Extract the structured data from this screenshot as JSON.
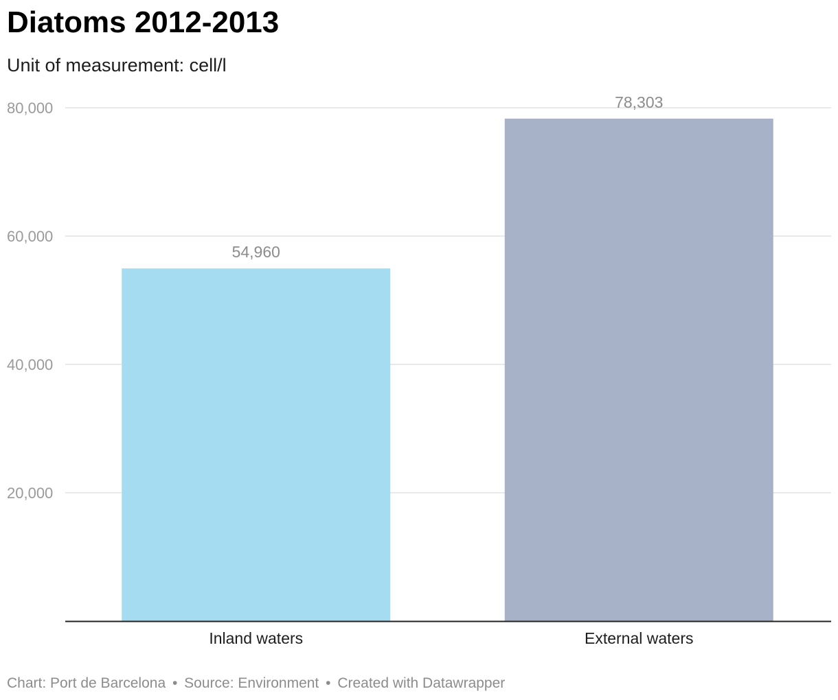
{
  "title": "Diatoms 2012-2013",
  "subtitle": "Unit of measurement: cell/l",
  "footer": {
    "chart_credit": "Chart: Port de Barcelona",
    "source": "Source: Environment",
    "created_with": "Created with Datawrapper",
    "separator": "•"
  },
  "chart_data": {
    "type": "bar",
    "categories": [
      "Inland waters",
      "External waters"
    ],
    "values": [
      54960,
      78303
    ],
    "value_labels": [
      "54,960",
      "78,303"
    ],
    "colors": [
      "#a6dcf2",
      "#a7b2c9"
    ],
    "ylim": [
      0,
      80000
    ],
    "yticks": [
      20000,
      40000,
      60000,
      80000
    ],
    "ytick_labels": [
      "20,000",
      "40,000",
      "60,000",
      "80,000"
    ],
    "grid": true,
    "xlabel": "",
    "ylabel": ""
  },
  "style": {
    "grid_color": "#e2e2e2",
    "tick_label_color": "#9a9a9a",
    "value_label_color": "#8c8c8c",
    "category_label_color": "#1d1d1d",
    "baseline_color": "#222222"
  }
}
